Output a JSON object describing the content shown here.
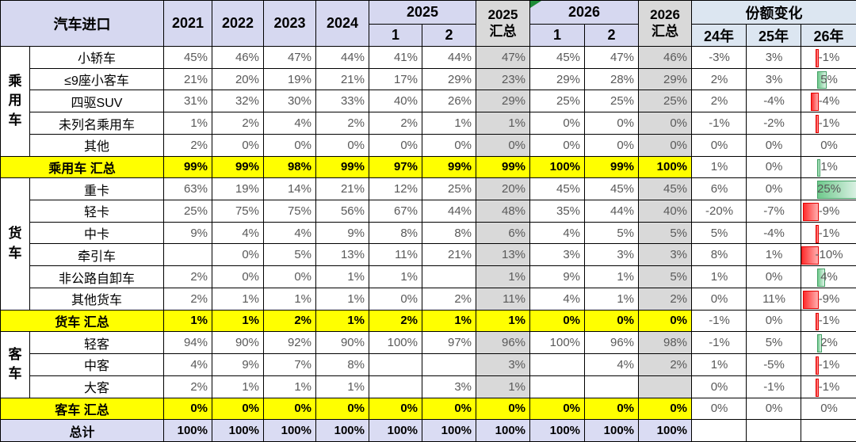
{
  "table": {
    "header": {
      "title": "汽车进口",
      "years": [
        "2021",
        "2022",
        "2023",
        "2024"
      ],
      "group_2025": "2025",
      "sum_2025_line1": "2025",
      "sum_2025_line2": "汇总",
      "group_2026": "2026",
      "sum_2026_line1": "2026",
      "sum_2026_line2": "汇总",
      "half_1": "1",
      "half_2": "2",
      "share_change": "份额变化",
      "share_years": [
        "24年",
        "25年",
        "26年"
      ]
    },
    "column_keys": [
      "2021",
      "2022",
      "2023",
      "2024",
      "2025-1",
      "2025-2",
      "2025汇总",
      "2026-1",
      "2026-2",
      "2026汇总",
      "24年",
      "25年",
      "26年"
    ],
    "rows": [
      {
        "type": "item",
        "group": "乘用车",
        "group_span": 5,
        "label": "小轿车",
        "values": [
          "45%",
          "46%",
          "47%",
          "44%",
          "41%",
          "44%",
          "47%",
          "45%",
          "47%",
          "46%",
          "-3%",
          "3%",
          "-1%"
        ]
      },
      {
        "type": "item",
        "label": "≤9座小客车",
        "values": [
          "21%",
          "20%",
          "19%",
          "21%",
          "17%",
          "29%",
          "23%",
          "29%",
          "28%",
          "29%",
          "2%",
          "3%",
          "5%"
        ]
      },
      {
        "type": "item",
        "label": "四驱SUV",
        "values": [
          "31%",
          "32%",
          "30%",
          "33%",
          "40%",
          "26%",
          "29%",
          "25%",
          "25%",
          "25%",
          "2%",
          "-4%",
          "-4%"
        ]
      },
      {
        "type": "item",
        "label": "未列名乘用车",
        "values": [
          "1%",
          "2%",
          "4%",
          "2%",
          "2%",
          "1%",
          "1%",
          "0%",
          "0%",
          "0%",
          "-1%",
          "-2%",
          "-1%"
        ]
      },
      {
        "type": "item",
        "label": "其他",
        "values": [
          "2%",
          "0%",
          "0%",
          "0%",
          "0%",
          "0%",
          "0%",
          "0%",
          "0%",
          "0%",
          "0%",
          "0%",
          "0%"
        ]
      },
      {
        "type": "summary",
        "label": "乘用车 汇总",
        "values": [
          "99%",
          "99%",
          "98%",
          "99%",
          "97%",
          "99%",
          "99%",
          "100%",
          "99%",
          "100%",
          "1%",
          "0%",
          "1%"
        ]
      },
      {
        "type": "item",
        "group": "货车",
        "group_span": 6,
        "label": "重卡",
        "values": [
          "63%",
          "19%",
          "14%",
          "21%",
          "12%",
          "25%",
          "20%",
          "45%",
          "45%",
          "45%",
          "6%",
          "0%",
          "25%"
        ]
      },
      {
        "type": "item",
        "label": "轻卡",
        "values": [
          "25%",
          "75%",
          "75%",
          "56%",
          "67%",
          "44%",
          "48%",
          "35%",
          "44%",
          "40%",
          "-20%",
          "-7%",
          "-9%"
        ]
      },
      {
        "type": "item",
        "label": "中卡",
        "values": [
          "9%",
          "4%",
          "4%",
          "9%",
          "8%",
          "8%",
          "6%",
          "4%",
          "5%",
          "5%",
          "5%",
          "-4%",
          "-1%"
        ]
      },
      {
        "type": "item",
        "label": "牵引车",
        "values": [
          "",
          "0%",
          "5%",
          "13%",
          "11%",
          "21%",
          "13%",
          "3%",
          "3%",
          "3%",
          "8%",
          "1%",
          "-10%"
        ]
      },
      {
        "type": "item",
        "label": "非公路自卸车",
        "values": [
          "2%",
          "0%",
          "0%",
          "1%",
          "1%",
          "",
          "1%",
          "9%",
          "1%",
          "5%",
          "1%",
          "0%",
          "4%"
        ]
      },
      {
        "type": "item",
        "label": "其他货车",
        "values": [
          "2%",
          "1%",
          "1%",
          "1%",
          "0%",
          "2%",
          "11%",
          "4%",
          "1%",
          "2%",
          "0%",
          "11%",
          "-9%"
        ]
      },
      {
        "type": "summary",
        "label": "货车 汇总",
        "values": [
          "1%",
          "1%",
          "2%",
          "1%",
          "2%",
          "1%",
          "1%",
          "0%",
          "0%",
          "0%",
          "-1%",
          "0%",
          "-1%"
        ]
      },
      {
        "type": "item",
        "group": "客车",
        "group_span": 3,
        "label": "轻客",
        "values": [
          "94%",
          "90%",
          "92%",
          "90%",
          "100%",
          "97%",
          "96%",
          "100%",
          "96%",
          "98%",
          "-1%",
          "5%",
          "2%"
        ]
      },
      {
        "type": "item",
        "label": "中客",
        "values": [
          "4%",
          "9%",
          "7%",
          "8%",
          "",
          "",
          "3%",
          "",
          "4%",
          "2%",
          "1%",
          "-5%",
          "-1%"
        ]
      },
      {
        "type": "item",
        "label": "大客",
        "values": [
          "2%",
          "1%",
          "1%",
          "1%",
          "",
          "3%",
          "1%",
          "",
          "",
          "",
          "0%",
          "-1%",
          "-1%"
        ]
      },
      {
        "type": "summary",
        "label": "客车 汇总",
        "values": [
          "0%",
          "0%",
          "0%",
          "0%",
          "0%",
          "0%",
          "0%",
          "0%",
          "0%",
          "0%",
          "0%",
          "0%",
          "0%"
        ]
      },
      {
        "type": "total",
        "label": "总计",
        "values": [
          "100%",
          "100%",
          "100%",
          "100%",
          "100%",
          "100%",
          "100%",
          "100%",
          "100%",
          "100%",
          "",
          "",
          ""
        ]
      }
    ],
    "colors": {
      "header_lavender": "#d6d8f0",
      "summary_column_gray": "#d9d9d9",
      "highlight_yellow": "#ffff00",
      "total_row_lavender": "#dadcf3",
      "share_header_blue": "#dce6f1",
      "bar_negative_red": "#ff2d2d",
      "bar_positive_green": "#6fc98c",
      "flag_triangle_green": "#1e8c38"
    }
  }
}
